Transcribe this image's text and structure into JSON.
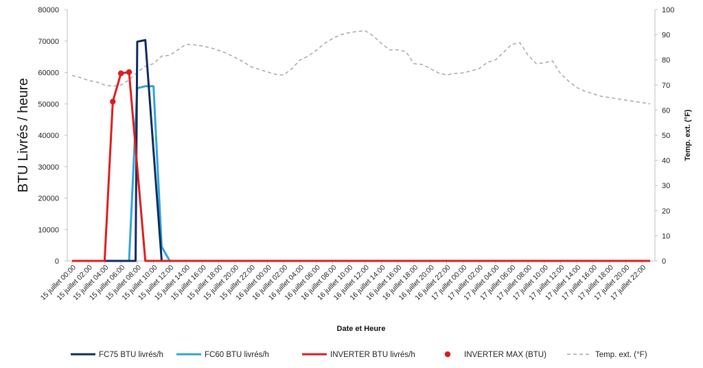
{
  "chart_data": {
    "type": "line",
    "xlabel": "Date et Heure",
    "ylabel": "BTU Livrés / heure",
    "y2label": "Temp. ext. (°F)",
    "ylim": [
      0,
      80000
    ],
    "y_ticks": [
      0,
      10000,
      20000,
      30000,
      40000,
      50000,
      60000,
      70000,
      80000
    ],
    "y2lim": [
      0,
      100
    ],
    "y2_ticks": [
      0,
      10,
      20,
      30,
      40,
      50,
      60,
      70,
      80,
      90,
      100
    ],
    "grid": false,
    "legend_position": "bottom",
    "x_index_range": [
      0,
      71
    ],
    "x_tick_indices": [
      0,
      2,
      4,
      6,
      8,
      10,
      12,
      14,
      16,
      18,
      20,
      22,
      24,
      26,
      28,
      30,
      32,
      34,
      36,
      38,
      40,
      42,
      44,
      46,
      48,
      50,
      52,
      54,
      56,
      58,
      60,
      62,
      64,
      66,
      68,
      70
    ],
    "x_tick_labels": [
      "15 juillet 00:00",
      "15 juillet 02:00",
      "15 juillet 04:00",
      "15 juillet 06:00",
      "15 juillet 08:00",
      "15 juillet 10:00",
      "15 juillet 12:00",
      "15 juillet 14:00",
      "15 juillet 16:00",
      "15 juillet 18:00",
      "15 juillet 20:00",
      "15 juillet 22:00",
      "16 juillet 00:00",
      "16 juillet 02:00",
      "16 juillet 04:00",
      "16 juillet 06:00",
      "16 juillet 08:00",
      "16 juillet 10:00",
      "16 juillet 12:00",
      "16 juillet 14:00",
      "16 juillet 16:00",
      "16 juillet 18:00",
      "16 juillet 20:00",
      "16 juillet 22:00",
      "17 juillet 00:00",
      "17 juillet 02:00",
      "17 juillet 04:00",
      "17 juillet 06:00",
      "17 juillet 08:00",
      "17 juillet 10:00",
      "17 juillet 12:00",
      "17 juillet 14:00",
      "17 juillet 16:00",
      "17 juillet 18:00",
      "17 juillet 20:00",
      "17 juillet 22:00"
    ],
    "series": [
      {
        "name": "FC75 BTU livrés/h",
        "axis": "left",
        "style": "line",
        "color": "#0d2a5c",
        "points": [
          [
            0,
            0
          ],
          [
            7,
            0
          ],
          [
            7.8,
            0
          ],
          [
            8.0,
            69800
          ],
          [
            9.0,
            70300
          ],
          [
            11.0,
            0
          ],
          [
            71,
            0
          ]
        ]
      },
      {
        "name": "FC60 BTU livrés/h",
        "axis": "left",
        "style": "line",
        "color": "#2ea3dc",
        "points": [
          [
            0,
            0
          ],
          [
            7.0,
            0
          ],
          [
            8.0,
            55000
          ],
          [
            9.0,
            55600
          ],
          [
            10.0,
            55600
          ],
          [
            11.0,
            4500
          ],
          [
            12.0,
            0
          ],
          [
            71,
            0
          ]
        ]
      },
      {
        "name": "INVERTER BTU livrés/h",
        "axis": "left",
        "style": "line",
        "color": "#e01b1b",
        "points": [
          [
            0,
            0
          ],
          [
            4.0,
            0
          ],
          [
            5.0,
            50700
          ],
          [
            6.0,
            59700
          ],
          [
            7.0,
            60100
          ],
          [
            9.0,
            0
          ],
          [
            71,
            0
          ]
        ]
      },
      {
        "name": "INVERTER MAX (BTU)",
        "axis": "left",
        "style": "markers",
        "color": "#e01b1b",
        "points": [
          [
            5.0,
            50700
          ],
          [
            6.0,
            59700
          ],
          [
            7.0,
            60100
          ]
        ]
      },
      {
        "name": "Temp. ext. (°F)",
        "axis": "right",
        "style": "dashed",
        "color": "#a6a6a6",
        "points": [
          [
            0,
            73.8
          ],
          [
            1,
            73.0
          ],
          [
            2,
            71.8
          ],
          [
            3,
            71.2
          ],
          [
            4,
            70.0
          ],
          [
            5,
            69.5
          ],
          [
            6,
            70.0
          ],
          [
            7,
            72.0
          ],
          [
            8,
            75.0
          ],
          [
            9,
            77.5
          ],
          [
            10,
            78.5
          ],
          [
            11,
            81.5
          ],
          [
            12,
            81.8
          ],
          [
            13,
            84.0
          ],
          [
            14,
            86.2
          ],
          [
            15,
            86.0
          ],
          [
            16,
            85.5
          ],
          [
            17,
            84.8
          ],
          [
            18,
            83.8
          ],
          [
            19,
            82.6
          ],
          [
            20,
            81.0
          ],
          [
            21,
            79.3
          ],
          [
            22,
            77.2
          ],
          [
            23,
            76.2
          ],
          [
            24,
            75.2
          ],
          [
            25,
            74.2
          ],
          [
            26,
            74.0
          ],
          [
            27,
            76.5
          ],
          [
            28,
            80.0
          ],
          [
            29,
            81.5
          ],
          [
            30,
            83.8
          ],
          [
            31,
            86.5
          ],
          [
            32,
            88.5
          ],
          [
            33,
            90.0
          ],
          [
            34,
            90.8
          ],
          [
            35,
            91.3
          ],
          [
            36,
            91.6
          ],
          [
            37,
            89.5
          ],
          [
            38,
            86.5
          ],
          [
            39,
            84.0
          ],
          [
            40,
            84.0
          ],
          [
            41,
            83.3
          ],
          [
            42,
            78.5
          ],
          [
            43,
            78.2
          ],
          [
            44,
            76.5
          ],
          [
            45,
            74.8
          ],
          [
            46,
            74.0
          ],
          [
            47,
            74.6
          ],
          [
            48,
            74.8
          ],
          [
            49,
            75.6
          ],
          [
            50,
            76.5
          ],
          [
            51,
            79.0
          ],
          [
            52,
            80.0
          ],
          [
            53,
            83.0
          ],
          [
            54,
            86.2
          ],
          [
            55,
            86.8
          ],
          [
            56,
            82.0
          ],
          [
            57,
            78.5
          ],
          [
            58,
            78.8
          ],
          [
            59,
            79.6
          ],
          [
            60,
            74.5
          ],
          [
            61,
            71.5
          ],
          [
            62,
            69.0
          ],
          [
            63,
            67.5
          ],
          [
            64,
            66.5
          ],
          [
            65,
            65.5
          ],
          [
            66,
            65.0
          ],
          [
            67,
            64.5
          ],
          [
            68,
            64.0
          ],
          [
            69,
            63.5
          ],
          [
            70,
            63.0
          ],
          [
            71,
            62.5
          ]
        ]
      }
    ],
    "legend": [
      {
        "label": "FC75 BTU livrés/h",
        "kind": "line",
        "color": "#0d2a5c"
      },
      {
        "label": "FC60 BTU livrés/h",
        "kind": "line",
        "color": "#2ea3dc"
      },
      {
        "label": "INVERTER BTU livrés/h",
        "kind": "line",
        "color": "#e01b1b"
      },
      {
        "label": "INVERTER MAX (BTU)",
        "kind": "marker",
        "color": "#e01b1b"
      },
      {
        "label": "Temp. ext. (°F)",
        "kind": "dashed",
        "color": "#a6a6a6"
      }
    ]
  }
}
